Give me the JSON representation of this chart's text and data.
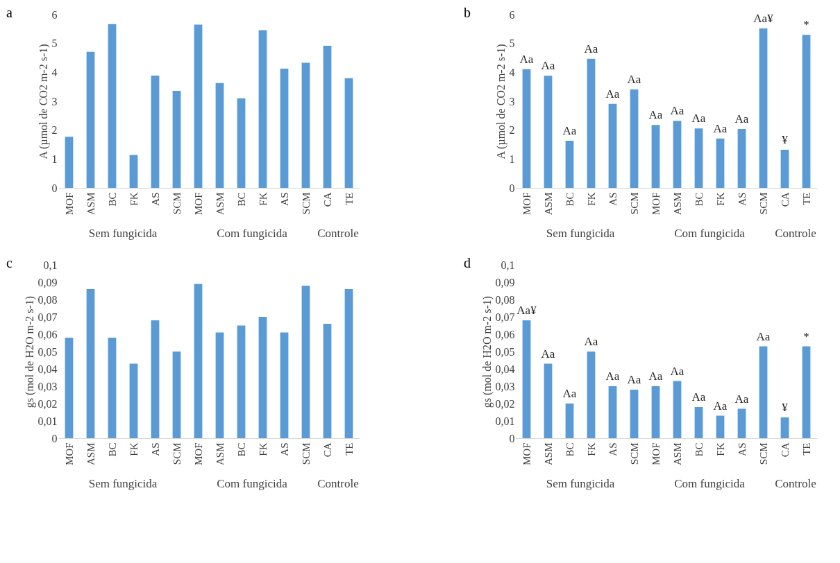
{
  "chart_data": [
    {
      "type": "bar",
      "title": "a",
      "ylabel": "A (µmol de CO2 m-2 s-1)",
      "categories": [
        "MOF",
        "ASM",
        "BC",
        "FK",
        "AS",
        "SCM",
        "MOF",
        "ASM",
        "BC",
        "FK",
        "AS",
        "SCM",
        "CA",
        "TE"
      ],
      "values": [
        1.77,
        4.71,
        5.67,
        1.14,
        3.89,
        3.36,
        5.65,
        3.63,
        3.1,
        5.46,
        4.13,
        4.33,
        4.92,
        3.8
      ],
      "color": "#5b9bd5",
      "ylim": [
        0,
        6
      ],
      "yticks": [
        0,
        1,
        2,
        3,
        4,
        5,
        6
      ],
      "annotations": [
        "Sem fungicida",
        "Com fungicida",
        "Controle"
      ]
    },
    {
      "type": "bar",
      "title": "b",
      "ylabel": "A (µmol de CO2 m-2 s-1)",
      "categories": [
        "MOF",
        "ASM",
        "BC",
        "FK",
        "AS",
        "SCM",
        "MOF",
        "ASM",
        "BC",
        "FK",
        "AS",
        "SCM",
        "CA",
        "TE"
      ],
      "values": [
        4.11,
        3.88,
        1.63,
        4.47,
        2.91,
        3.41,
        2.18,
        2.32,
        2.06,
        1.71,
        2.04,
        5.52,
        1.32,
        5.3
      ],
      "value_labels": [
        "Aa",
        "Aa",
        "Aa",
        "Aa",
        "Aa",
        "Aa",
        "Aa",
        "Aa",
        "Aa",
        "Aa",
        "Aa",
        "Aa¥",
        "¥",
        "*"
      ],
      "color": "#5b9bd5",
      "ylim": [
        0,
        6
      ],
      "yticks": [
        0,
        1,
        2,
        3,
        4,
        5,
        6
      ],
      "annotations": [
        "Sem fungicida",
        "Com fungicida",
        "Controle"
      ]
    },
    {
      "type": "bar",
      "title": "c",
      "ylabel": "gs (mol de H2O m-2 s-1)",
      "categories": [
        "MOF",
        "ASM",
        "BC",
        "FK",
        "AS",
        "SCM",
        "MOF",
        "ASM",
        "BC",
        "FK",
        "AS",
        "SCM",
        "CA",
        "TE"
      ],
      "values": [
        0.058,
        0.086,
        0.058,
        0.043,
        0.068,
        0.05,
        0.089,
        0.061,
        0.065,
        0.07,
        0.061,
        0.088,
        0.066,
        0.086
      ],
      "color": "#5b9bd5",
      "ylim": [
        0,
        0.1
      ],
      "yticks": [
        0,
        {
          "value": 0.01,
          "label": "0,01"
        },
        {
          "value": 0.02,
          "label": "0,02"
        },
        {
          "value": 0.03,
          "label": "0,03"
        },
        {
          "value": 0.04,
          "label": "0,04"
        },
        {
          "value": 0.05,
          "label": "0,05"
        },
        {
          "value": 0.06,
          "label": "0,06"
        },
        {
          "value": 0.07,
          "label": "0,07"
        },
        {
          "value": 0.08,
          "label": "0,08"
        },
        {
          "value": 0.09,
          "label": "0,09"
        },
        {
          "value": 0.1,
          "label": "0,1"
        }
      ],
      "annotations": [
        "Sem fungicida",
        "Com fungicida",
        "Controle"
      ]
    },
    {
      "type": "bar",
      "title": "d",
      "ylabel": "gs (mol de H2O m-2 s-1)",
      "categories": [
        "MOF",
        "ASM",
        "BC",
        "FK",
        "AS",
        "SCM",
        "MOF",
        "ASM",
        "BC",
        "FK",
        "AS",
        "SCM",
        "CA",
        "TE"
      ],
      "values": [
        0.068,
        0.043,
        0.02,
        0.05,
        0.03,
        0.028,
        0.03,
        0.033,
        0.018,
        0.013,
        0.017,
        0.053,
        0.012,
        0.053
      ],
      "value_labels": [
        "Aa¥",
        "Aa",
        "Aa",
        "Aa",
        "Aa",
        "Aa",
        "Aa",
        "Aa",
        "Aa",
        "Aa",
        "Aa",
        "Aa",
        "¥",
        "*"
      ],
      "color": "#5b9bd5",
      "ylim": [
        0,
        0.1
      ],
      "yticks": [
        0,
        {
          "value": 0.01,
          "label": "0,01"
        },
        {
          "value": 0.02,
          "label": "0,02"
        },
        {
          "value": 0.03,
          "label": "0,03"
        },
        {
          "value": 0.04,
          "label": "0,04"
        },
        {
          "value": 0.05,
          "label": "0,05"
        },
        {
          "value": 0.06,
          "label": "0,06"
        },
        {
          "value": 0.07,
          "label": "0,07"
        },
        {
          "value": 0.08,
          "label": "0,08"
        },
        {
          "value": 0.09,
          "label": "0,09"
        },
        {
          "value": 0.1,
          "label": "0,1"
        }
      ],
      "annotations": [
        "Sem fungicida",
        "Com fungicida",
        "Controle"
      ]
    }
  ]
}
